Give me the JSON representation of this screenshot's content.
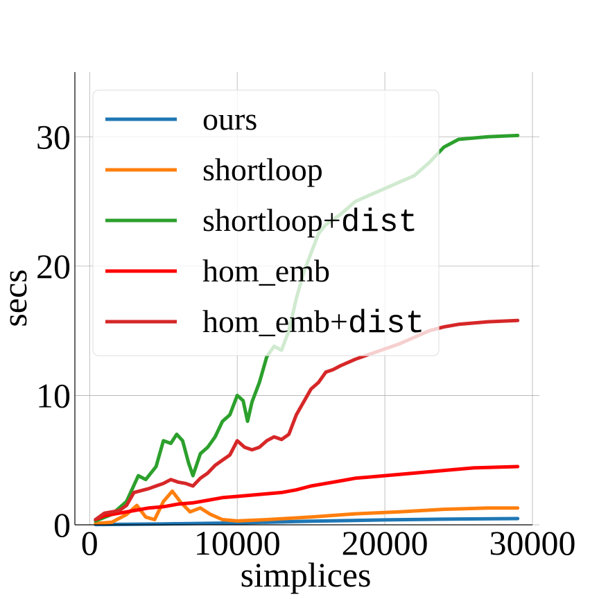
{
  "chart_data": {
    "type": "line",
    "title": "",
    "xlabel": "simplices",
    "ylabel": "secs",
    "xlim": [
      -1000,
      30000
    ],
    "ylim": [
      0,
      35
    ],
    "xticks": [
      0,
      10000,
      20000,
      30000
    ],
    "xtick_labels": [
      "0",
      "10000",
      "20000",
      "30000"
    ],
    "yticks": [
      0,
      10,
      20,
      30
    ],
    "ytick_labels": [
      "0",
      "10",
      "20",
      "30"
    ],
    "grid": true,
    "legend_position": "upper-left",
    "series": [
      {
        "name": "ours",
        "color": "#1f77b4",
        "x": [
          400,
          5000,
          10000,
          15000,
          20000,
          25000,
          29000
        ],
        "y": [
          0.02,
          0.07,
          0.15,
          0.28,
          0.38,
          0.45,
          0.48
        ]
      },
      {
        "name": "shortloop",
        "color": "#ff7f0e",
        "x": [
          400,
          1500,
          2500,
          3200,
          3800,
          4400,
          5000,
          5600,
          6200,
          6800,
          7500,
          8200,
          9000,
          10000,
          12000,
          15000,
          18000,
          21000,
          24000,
          27000,
          29000
        ],
        "y": [
          0.1,
          0.2,
          0.8,
          1.5,
          0.6,
          0.4,
          1.8,
          2.6,
          1.7,
          1.0,
          1.3,
          0.8,
          0.4,
          0.3,
          0.4,
          0.6,
          0.85,
          1.0,
          1.2,
          1.3,
          1.3
        ]
      },
      {
        "name": "shortloop+dist",
        "name_suffix": "dist",
        "color": "#2ca02c",
        "x": [
          400,
          1500,
          2500,
          3300,
          3800,
          4500,
          5000,
          5500,
          5900,
          6300,
          6700,
          7000,
          7500,
          8000,
          8500,
          9000,
          9500,
          10000,
          10400,
          10700,
          11000,
          11500,
          12000,
          12500,
          13000,
          13500,
          14000,
          14500,
          15000,
          15500,
          16000,
          17000,
          18000,
          19000,
          20000,
          21000,
          22000,
          23000,
          24000,
          25000,
          27000,
          29000
        ],
        "y": [
          0.3,
          0.8,
          1.8,
          3.8,
          3.5,
          4.5,
          6.5,
          6.3,
          7.0,
          6.5,
          4.8,
          3.8,
          5.5,
          6.0,
          6.8,
          8.0,
          8.5,
          10.0,
          9.6,
          8.0,
          9.5,
          11.0,
          13.0,
          13.8,
          13.5,
          15.0,
          17.5,
          19.5,
          21.0,
          22.5,
          23.2,
          24.0,
          25.0,
          25.5,
          26.0,
          26.5,
          27.0,
          28.0,
          29.2,
          29.8,
          30.0,
          30.1
        ]
      },
      {
        "name": "hom_emb",
        "color": "#ff0000",
        "x": [
          400,
          1000,
          2000,
          3000,
          4000,
          5000,
          6000,
          7000,
          8000,
          9000,
          10000,
          11000,
          12000,
          13000,
          14000,
          15000,
          16000,
          17000,
          18000,
          19000,
          20000,
          22000,
          24000,
          26000,
          29000
        ],
        "y": [
          0.4,
          0.7,
          0.9,
          1.1,
          1.3,
          1.4,
          1.6,
          1.7,
          1.9,
          2.1,
          2.2,
          2.3,
          2.4,
          2.5,
          2.7,
          3.0,
          3.2,
          3.4,
          3.6,
          3.7,
          3.8,
          4.0,
          4.2,
          4.4,
          4.5
        ]
      },
      {
        "name": "hom_emb+dist",
        "name_suffix": "dist",
        "color": "#d62728",
        "x": [
          400,
          1000,
          2000,
          2500,
          3000,
          4000,
          4500,
          5000,
          5500,
          6000,
          6500,
          7000,
          7500,
          8000,
          8500,
          9000,
          9500,
          10000,
          10500,
          11000,
          11500,
          12000,
          12500,
          13000,
          13500,
          14000,
          14500,
          15000,
          15500,
          16000,
          16500,
          17000,
          18000,
          19000,
          20000,
          21000,
          22000,
          23000,
          24000,
          25000,
          27000,
          29000
        ],
        "y": [
          0.4,
          0.9,
          1.1,
          1.5,
          2.5,
          2.8,
          3.0,
          3.2,
          3.5,
          3.3,
          3.2,
          3.0,
          3.6,
          4.0,
          4.6,
          5.0,
          5.4,
          6.5,
          6.0,
          5.8,
          6.0,
          6.5,
          6.8,
          6.6,
          7.0,
          8.5,
          9.5,
          10.5,
          11.0,
          11.8,
          12.0,
          12.3,
          12.8,
          13.2,
          13.6,
          14.0,
          14.5,
          15.0,
          15.3,
          15.5,
          15.7,
          15.8
        ]
      }
    ]
  }
}
